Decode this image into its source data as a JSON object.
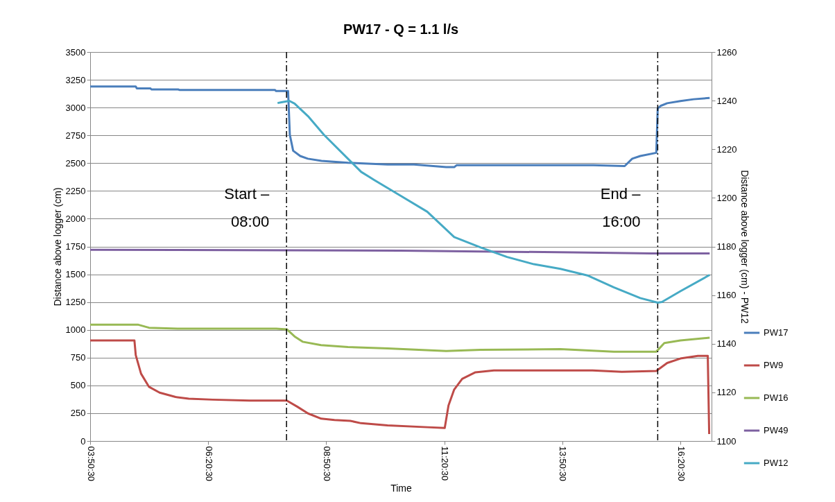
{
  "chart_data": {
    "type": "line",
    "title": "PW17 - Q = 1.1 l/s",
    "xlabel": "Time",
    "ylabel": "Distance above logger (cm)",
    "y2label": "Distance above logger (cm) - PW12",
    "xlim": [
      3.8417,
      17.0
    ],
    "xticks": [
      {
        "value": 3.8417,
        "label": "03:50:30"
      },
      {
        "value": 6.3417,
        "label": "06:20:30"
      },
      {
        "value": 8.8417,
        "label": "08:50:30"
      },
      {
        "value": 11.3417,
        "label": "11:20:30"
      },
      {
        "value": 13.8417,
        "label": "13:50:30"
      },
      {
        "value": 16.3417,
        "label": "16:20:30"
      }
    ],
    "ylim": [
      0,
      3500
    ],
    "yticks": [
      0,
      250,
      500,
      750,
      1000,
      1250,
      1500,
      1750,
      2000,
      2250,
      2500,
      2750,
      3000,
      3250,
      3500
    ],
    "y2lim": [
      1100,
      1260
    ],
    "y2ticks": [
      1100,
      1120,
      1140,
      1160,
      1180,
      1200,
      1220,
      1240,
      1260
    ],
    "grid": "y",
    "legend": "right",
    "marker": "none",
    "line_style": "solid",
    "ref_lines": [
      {
        "axis": "x",
        "value": 8.0,
        "label": "Start –\n08:00",
        "line_style": "dashed",
        "color": "#000000"
      },
      {
        "axis": "x",
        "value": 15.86,
        "label": "End –\n16:00",
        "line_style": "dashed",
        "color": "#000000"
      }
    ],
    "series": [
      {
        "name": "PW17",
        "color": "#4a7ebb",
        "x": [
          3.842,
          4.807,
          4.83,
          5.116,
          5.14,
          5.705,
          5.73,
          7.753,
          7.78,
          8.033,
          8.05,
          8.07,
          8.14,
          8.29,
          8.45,
          8.74,
          9.3,
          10.14,
          10.7,
          11.38,
          11.55,
          11.6,
          12.5,
          13.5,
          14.5,
          15.16,
          15.32,
          15.49,
          15.83,
          15.86,
          15.92,
          16.06,
          16.34,
          16.62,
          16.96
        ],
        "values": [
          3190,
          3190,
          3173,
          3173,
          3163,
          3163,
          3159,
          3159,
          3149,
          3149,
          2968,
          2755,
          2612,
          2564,
          2540,
          2521,
          2504,
          2488,
          2488,
          2464,
          2464,
          2481,
          2481,
          2481,
          2481,
          2474,
          2540,
          2564,
          2593,
          2991,
          3015,
          3039,
          3058,
          3075,
          3087
        ]
      },
      {
        "name": "PW9",
        "color": "#be4b48",
        "x": [
          3.842,
          4.779,
          4.807,
          4.919,
          5.088,
          5.312,
          5.649,
          5.929,
          6.434,
          7.22,
          8.006,
          8.23,
          8.454,
          8.735,
          9.016,
          9.352,
          9.577,
          10.138,
          10.98,
          11.35,
          11.43,
          11.55,
          11.72,
          12.0,
          12.39,
          14.48,
          15.1,
          15.83,
          16.06,
          16.34,
          16.71,
          16.92,
          16.95
        ],
        "values": [
          905,
          905,
          773,
          606,
          487,
          435,
          396,
          380,
          372,
          363,
          363,
          308,
          248,
          201,
          189,
          181,
          160,
          141,
          124,
          117,
          320,
          463,
          559,
          618,
          635,
          635,
          623,
          630,
          702,
          742,
          766,
          766,
          62
        ]
      },
      {
        "name": "PW16",
        "color": "#98b954",
        "x": [
          3.842,
          4.863,
          5.088,
          5.761,
          7.781,
          8.006,
          8.17,
          8.34,
          8.73,
          9.3,
          10.14,
          11.38,
          12.11,
          13.8,
          14.93,
          15.83,
          16.0,
          16.34,
          16.96
        ],
        "values": [
          1046,
          1046,
          1019,
          1010,
          1010,
          1005,
          941,
          893,
          862,
          845,
          833,
          809,
          821,
          826,
          804,
          804,
          881,
          905,
          929
        ]
      },
      {
        "name": "PW49",
        "color": "#7d60a0",
        "x": [
          3.842,
          10.42,
          14.08,
          15.72,
          16.96
        ],
        "values": [
          1721,
          1712,
          1697,
          1688,
          1688
        ]
      },
      {
        "name": "PW12",
        "color": "#46aac5",
        "axis": "y2",
        "x": [
          7.81,
          7.893,
          8.06,
          8.17,
          8.455,
          8.79,
          9.3,
          9.58,
          9.854,
          10.42,
          10.98,
          11.55,
          12.11,
          12.67,
          13.24,
          13.8,
          14.37,
          14.93,
          15.49,
          15.86,
          15.95,
          16.34,
          16.96
        ],
        "values": [
          1239.0,
          1239.3,
          1239.9,
          1238.8,
          1233.6,
          1226.0,
          1216.1,
          1210.7,
          1207.4,
          1200.8,
          1194.3,
          1183.9,
          1179.6,
          1175.7,
          1172.7,
          1170.8,
          1168.1,
          1163.2,
          1158.8,
          1156.9,
          1157.2,
          1161.6,
          1168.3
        ]
      }
    ]
  }
}
